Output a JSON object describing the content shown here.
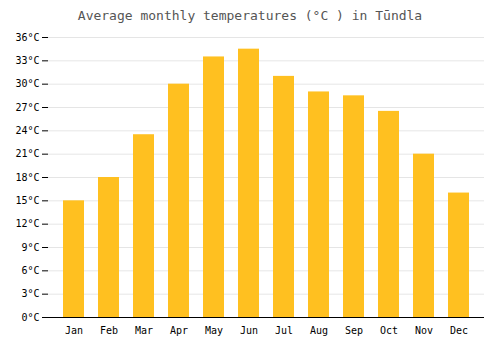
{
  "chart_data": {
    "type": "bar",
    "title": "Average monthly temperatures (°C ) in Tūndla",
    "categories": [
      "Jan",
      "Feb",
      "Mar",
      "Apr",
      "May",
      "Jun",
      "Jul",
      "Aug",
      "Sep",
      "Oct",
      "Nov",
      "Dec"
    ],
    "values": [
      15,
      18,
      23.5,
      30,
      33.5,
      34.5,
      31,
      29,
      28.5,
      26.5,
      21,
      16
    ],
    "color": "#FFC020",
    "ylim": [
      0,
      36
    ],
    "yticks": [
      {
        "value": 0,
        "label": "0°C"
      },
      {
        "value": 3,
        "label": "3°C"
      },
      {
        "value": 6,
        "label": "6°C"
      },
      {
        "value": 9,
        "label": "9°C"
      },
      {
        "value": 12,
        "label": "12°C"
      },
      {
        "value": 15,
        "label": "15°C"
      },
      {
        "value": 18,
        "label": "18°C"
      },
      {
        "value": 21,
        "label": "21°C"
      },
      {
        "value": 24,
        "label": "24°C"
      },
      {
        "value": 27,
        "label": "27°C"
      },
      {
        "value": 30,
        "label": "30°C"
      },
      {
        "value": 33,
        "label": "33°C"
      },
      {
        "value": 36,
        "label": "36°C"
      }
    ],
    "grid": true
  }
}
